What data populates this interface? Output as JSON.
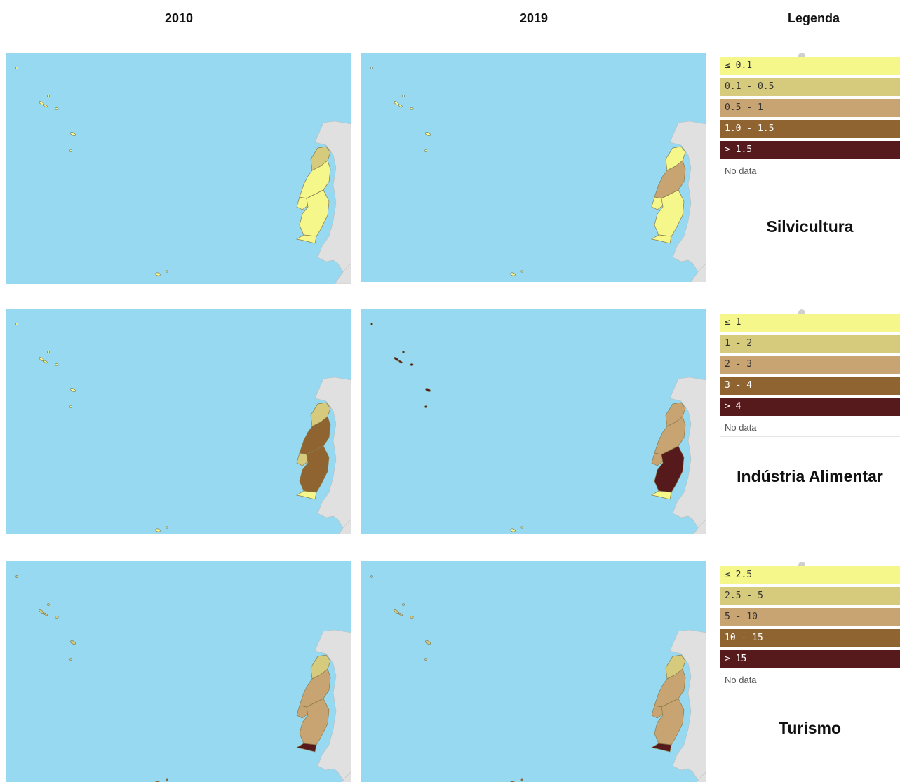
{
  "headers": {
    "col1": "2010",
    "col2": "2019",
    "col3": "Legenda"
  },
  "colors": {
    "sea": "#96d9f0",
    "land": "#e0e0e0",
    "c1": "#f5f78a",
    "c2": "#d6cb7c",
    "c3": "#c9a473",
    "c4": "#8f6431",
    "c5": "#561a1c"
  },
  "rows": [
    {
      "sector": "Silvicultura",
      "legend": [
        {
          "label": "≤ 0.1"
        },
        {
          "label": "0.1 - 0.5"
        },
        {
          "label": "0.5 - 1"
        },
        {
          "label": "1.0 - 1.5"
        },
        {
          "label": "> 1.5"
        },
        {
          "label": "No data"
        }
      ],
      "maps": [
        {
          "year": "2010",
          "regions": {
            "norte": 2,
            "centro": 1,
            "lisboa": 1,
            "alentejo": 1,
            "algarve": 1,
            "acores": 1,
            "madeira": 1
          }
        },
        {
          "year": "2019",
          "regions": {
            "norte": 1,
            "centro": 3,
            "lisboa": 1,
            "alentejo": 1,
            "algarve": 1,
            "acores": 1,
            "madeira": 1
          }
        }
      ]
    },
    {
      "sector": "Indústria Alimentar",
      "legend": [
        {
          "label": "≤ 1"
        },
        {
          "label": "1 - 2"
        },
        {
          "label": "2 - 3"
        },
        {
          "label": "3 - 4"
        },
        {
          "label": "> 4"
        },
        {
          "label": "No data"
        }
      ],
      "maps": [
        {
          "year": "2010",
          "regions": {
            "norte": 2,
            "centro": 4,
            "lisboa": 2,
            "alentejo": 4,
            "algarve": 1,
            "acores": 1,
            "madeira": 1
          }
        },
        {
          "year": "2019",
          "regions": {
            "norte": 3,
            "centro": 3,
            "lisboa": 3,
            "alentejo": 5,
            "algarve": 1,
            "acores": 5,
            "madeira": 1
          }
        }
      ]
    },
    {
      "sector": "Turismo",
      "legend": [
        {
          "label": "≤ 2.5"
        },
        {
          "label": "2.5 - 5"
        },
        {
          "label": "5 - 10"
        },
        {
          "label": "10 - 15"
        },
        {
          "label": "> 15"
        },
        {
          "label": "No data"
        }
      ],
      "maps": [
        {
          "year": "2010",
          "regions": {
            "norte": 2,
            "centro": 3,
            "lisboa": 3,
            "alentejo": 3,
            "algarve": 5,
            "acores": 2,
            "madeira": 4
          }
        },
        {
          "year": "2019",
          "regions": {
            "norte": 2,
            "centro": 3,
            "lisboa": 3,
            "alentejo": 3,
            "algarve": 5,
            "acores": 2,
            "madeira": 4
          }
        }
      ]
    }
  ]
}
